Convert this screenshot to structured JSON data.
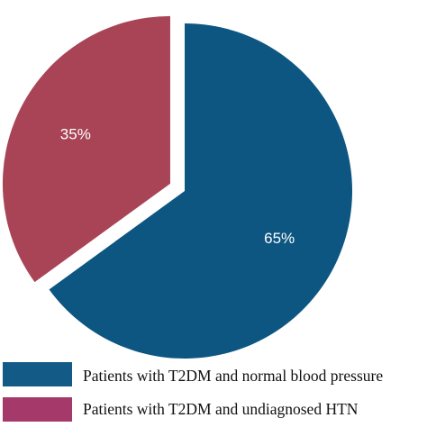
{
  "chart_data": {
    "type": "pie",
    "categories": [
      "Patients with T2DM and normal blood pressure",
      "Patients with T2DM and undiagnosed HTN"
    ],
    "values": [
      65,
      35
    ],
    "data_labels": [
      "65%",
      "35%"
    ],
    "colors": [
      "#0d5681",
      "#a84456"
    ],
    "legend_colors": [
      "#145a86",
      "#a4396a"
    ],
    "exploded_slice": 1,
    "legend": {
      "placement": "bottom-left",
      "entries": [
        "Patients with T2DM and normal blood pressure",
        "Patients with T2DM and undiagnosed HTN"
      ]
    },
    "title": "",
    "xlabel": "",
    "ylabel": ""
  }
}
